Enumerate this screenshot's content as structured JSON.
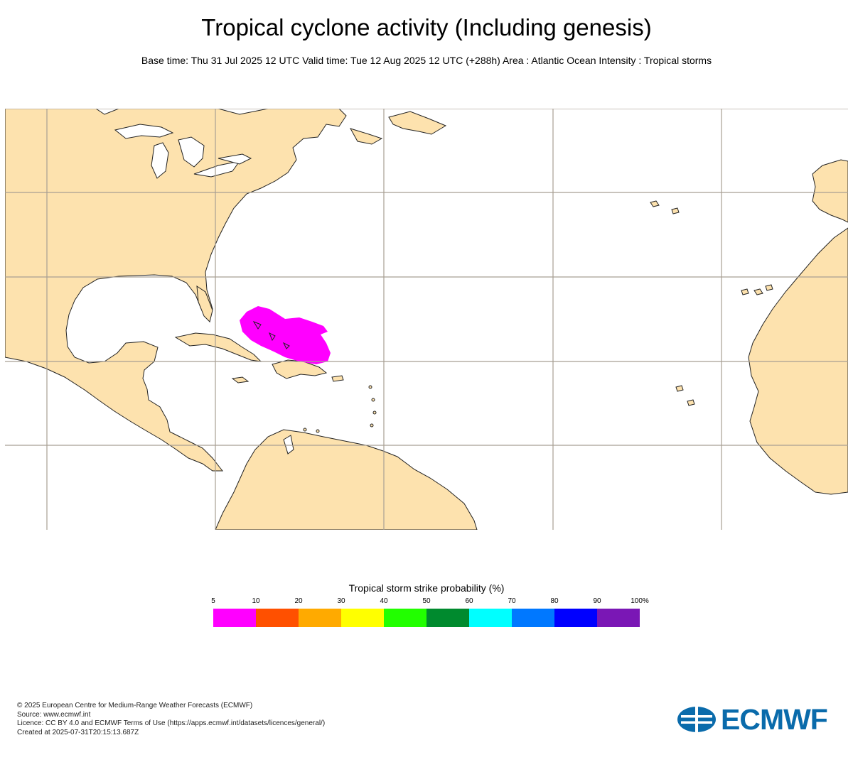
{
  "title": "Tropical cyclone activity (Including genesis)",
  "subtitle": "Base time: Thu 31 Jul 2025 12 UTC Valid time: Tue 12 Aug 2025 12 UTC (+288h) Area : Atlantic Ocean Intensity : Tropical storms",
  "colors": {
    "land": "#fde2ae",
    "ocean": "#ffffff",
    "grid": "#a89f93",
    "coast": "#222222",
    "strike_area": "#ff00ff",
    "brand": "#0a6bab"
  },
  "map": {
    "strike_probability_band": "5-10",
    "gridlines": true
  },
  "legend": {
    "title": "Tropical storm strike probability (%)",
    "ticks": [
      "5",
      "10",
      "20",
      "30",
      "40",
      "50",
      "60",
      "70",
      "80",
      "90",
      "100%"
    ],
    "colors": [
      "#ff00ff",
      "#ff5000",
      "#ffaa00",
      "#ffff00",
      "#22ff00",
      "#008a2e",
      "#00ffff",
      "#0078ff",
      "#0000ff",
      "#7a17b5"
    ]
  },
  "footer": {
    "copyright": "© 2025 European Centre for Medium-Range Weather Forecasts (ECMWF)",
    "source": "Source: www.ecmwf.int",
    "licence": "Licence: CC BY 4.0 and ECMWF Terms of Use (https://apps.ecmwf.int/datasets/licences/general/)",
    "created": "Created at 2025-07-31T20:15:13.687Z"
  },
  "logo": {
    "text": "ECMWF",
    "icon": "ecmwf-logo-icon"
  }
}
